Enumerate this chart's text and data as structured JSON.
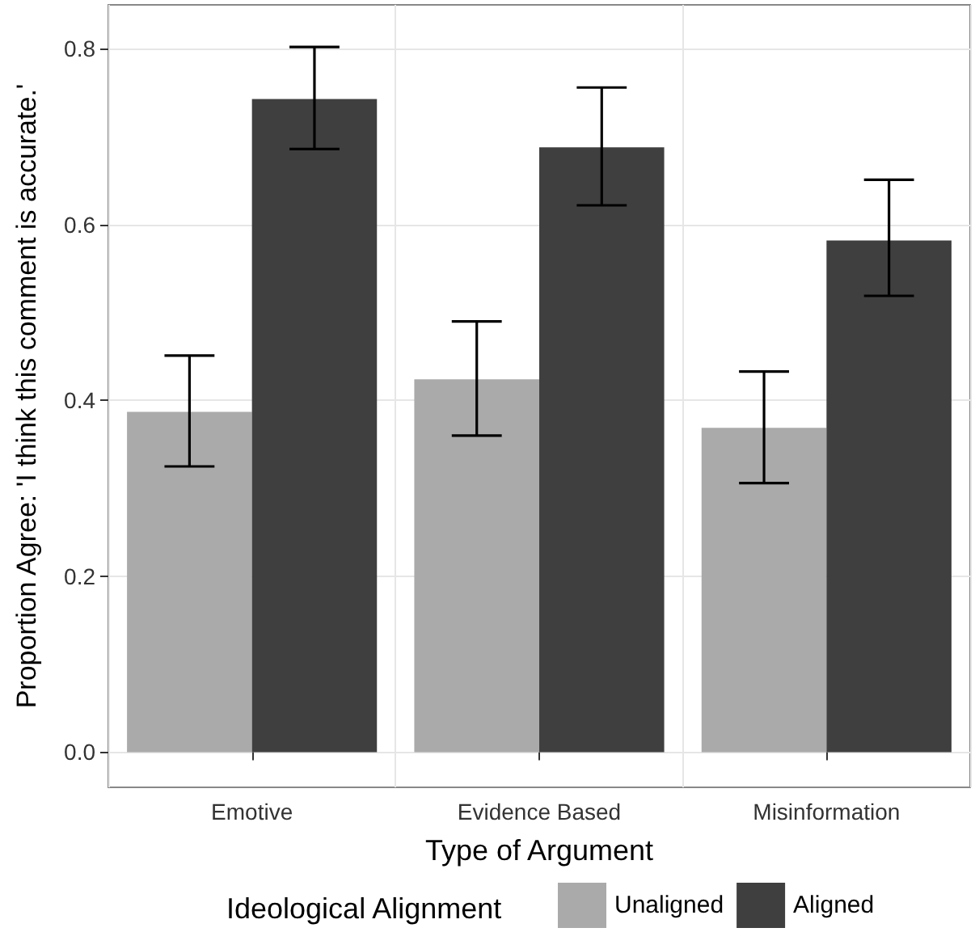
{
  "chart_data": {
    "type": "bar",
    "xlabel": "Type of Argument",
    "ylabel": "Proportion Agree: 'I think this comment is accurate.'",
    "legend_title": "Ideological Alignment",
    "categories": [
      "Emotive",
      "Evidence Based",
      "Misinformation"
    ],
    "series": [
      {
        "name": "Unaligned",
        "color": "#aaaaaa",
        "values": [
          0.387,
          0.424,
          0.369
        ],
        "errors": [
          [
            0.325,
            0.451
          ],
          [
            0.36,
            0.49
          ],
          [
            0.306,
            0.433
          ]
        ]
      },
      {
        "name": "Aligned",
        "color": "#3f3f3f",
        "values": [
          0.743,
          0.688,
          0.582
        ],
        "errors": [
          [
            0.686,
            0.802
          ],
          [
            0.622,
            0.756
          ],
          [
            0.519,
            0.651
          ]
        ]
      }
    ],
    "ylim": [
      -0.04,
      0.85
    ],
    "yticks": [
      {
        "value": 0,
        "label": "0.0"
      },
      {
        "value": 0.2,
        "label": "0.2"
      },
      {
        "value": 0.4,
        "label": "0.4"
      },
      {
        "value": 0.6,
        "label": "0.6"
      },
      {
        "value": 0.8,
        "label": "0.8"
      }
    ],
    "grid": true,
    "legend": "bottom"
  }
}
